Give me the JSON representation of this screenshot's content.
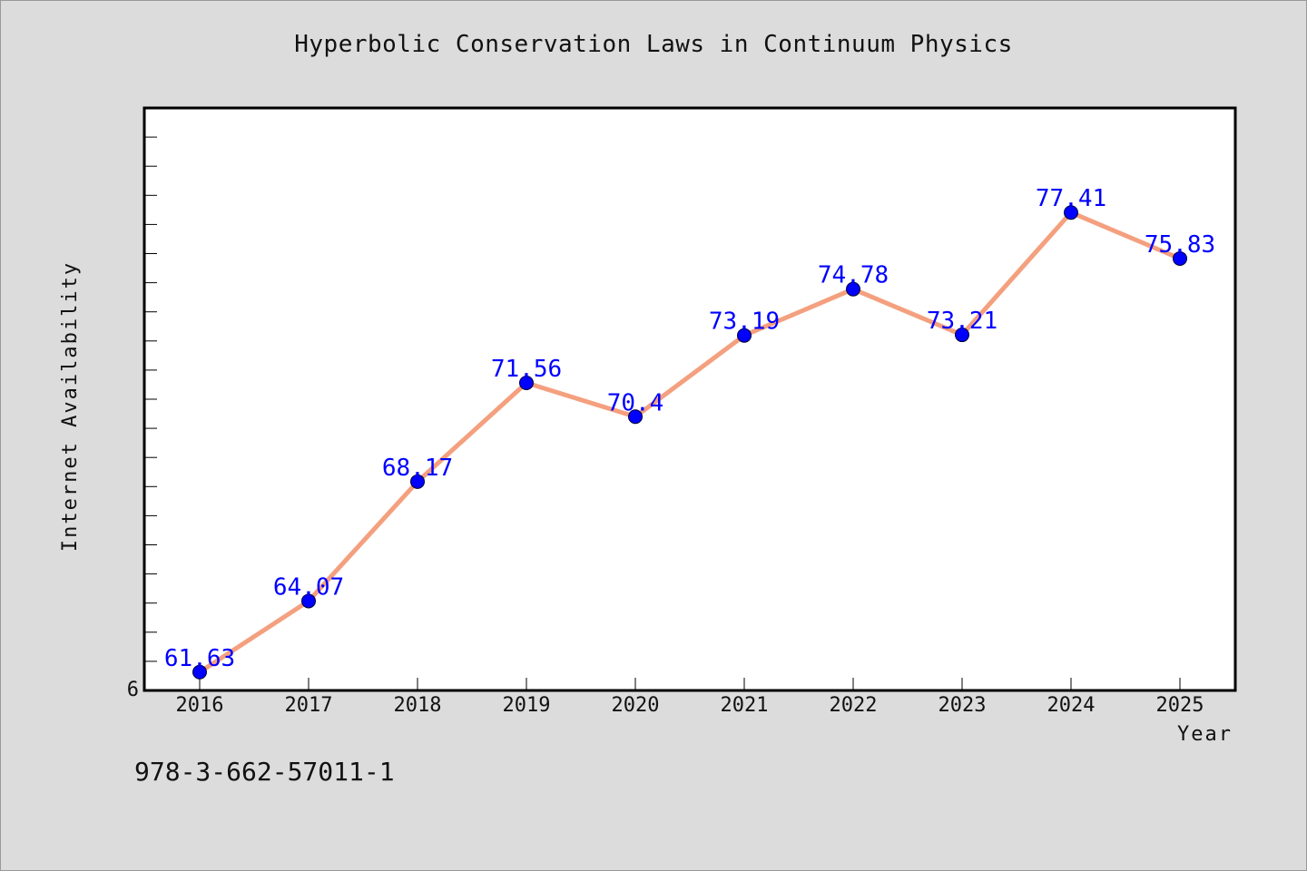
{
  "chart_data": {
    "type": "line",
    "title": "Hyperbolic Conservation Laws in Continuum Physics",
    "xlabel": "Year",
    "ylabel": "Internet Availability",
    "x": [
      "2016",
      "2017",
      "2018",
      "2019",
      "2020",
      "2021",
      "2022",
      "2023",
      "2024",
      "2025"
    ],
    "series": [
      {
        "values": [
          61.63,
          64.07,
          68.17,
          71.56,
          70.4,
          73.19,
          74.78,
          73.21,
          77.41,
          75.83
        ],
        "data_labels": [
          "61.63",
          "64.07",
          "68.17",
          "71.56",
          "70.4",
          "73.19",
          "74.78",
          "73.21",
          "77.41",
          "75.83"
        ]
      }
    ],
    "ylim": [
      61.0,
      81.0
    ],
    "y_tick_labels": [
      "6"
    ],
    "grid": false,
    "colors": {
      "line": "#f4a07f",
      "marker": "#0000ff",
      "data_label": "#0000ff",
      "background": "#dcdcdc",
      "plot_background": "#ffffff"
    }
  },
  "footer": {
    "isbn": "978-3-662-57011-1"
  }
}
